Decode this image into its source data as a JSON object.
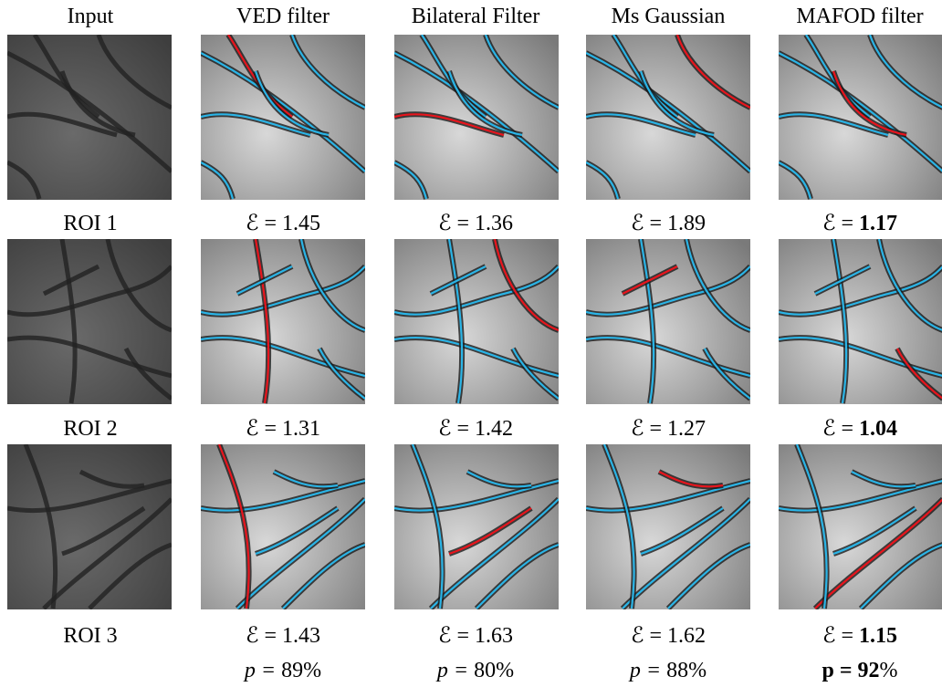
{
  "columns": [
    "Input",
    "VED filter",
    "Bilateral Filter",
    "Ms Gaussian",
    "MAFOD filter"
  ],
  "metric_prefix": "ℰ =",
  "rows": [
    {
      "label": "ROI 1",
      "scores": [
        "1.45",
        "1.36",
        "1.89",
        "1.17"
      ]
    },
    {
      "label": "ROI 2",
      "scores": [
        "1.31",
        "1.42",
        "1.27",
        "1.04"
      ]
    },
    {
      "label": "ROI 3",
      "scores": [
        "1.43",
        "1.63",
        "1.62",
        "1.15"
      ]
    }
  ],
  "p_prefix": "p =",
  "p_values": [
    "89",
    "80",
    "88",
    "92"
  ],
  "percent_sign": "%"
}
